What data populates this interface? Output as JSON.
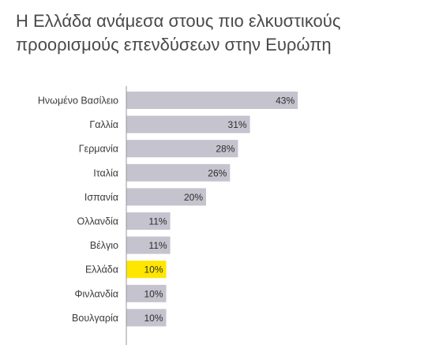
{
  "chart_data": {
    "type": "bar",
    "orientation": "horizontal",
    "title": "Η Ελλάδα ανάμεσα στους πιο ελκυστικούς προορισμούς επενδύσεων στην Ευρώπη",
    "categories": [
      "Ηνωμένο Βασίλειο",
      "Γαλλία",
      "Γερμανία",
      "Ιταλία",
      "Ισπανία",
      "Ολλανδία",
      "Βέλγιο",
      "Ελλάδα",
      "Φινλανδία",
      "Βουλγαρία"
    ],
    "values": [
      43,
      31,
      28,
      26,
      20,
      11,
      11,
      10,
      10,
      10
    ],
    "value_labels": [
      "43%",
      "31%",
      "28%",
      "26%",
      "20%",
      "11%",
      "11%",
      "10%",
      "10%",
      "10%"
    ],
    "highlight_index": 7,
    "xlim": [
      0,
      100
    ],
    "grid": false,
    "legend": "none",
    "colors": {
      "bar": "#c4c3ce",
      "highlight": "#ffe600",
      "axis": "#999999"
    }
  }
}
